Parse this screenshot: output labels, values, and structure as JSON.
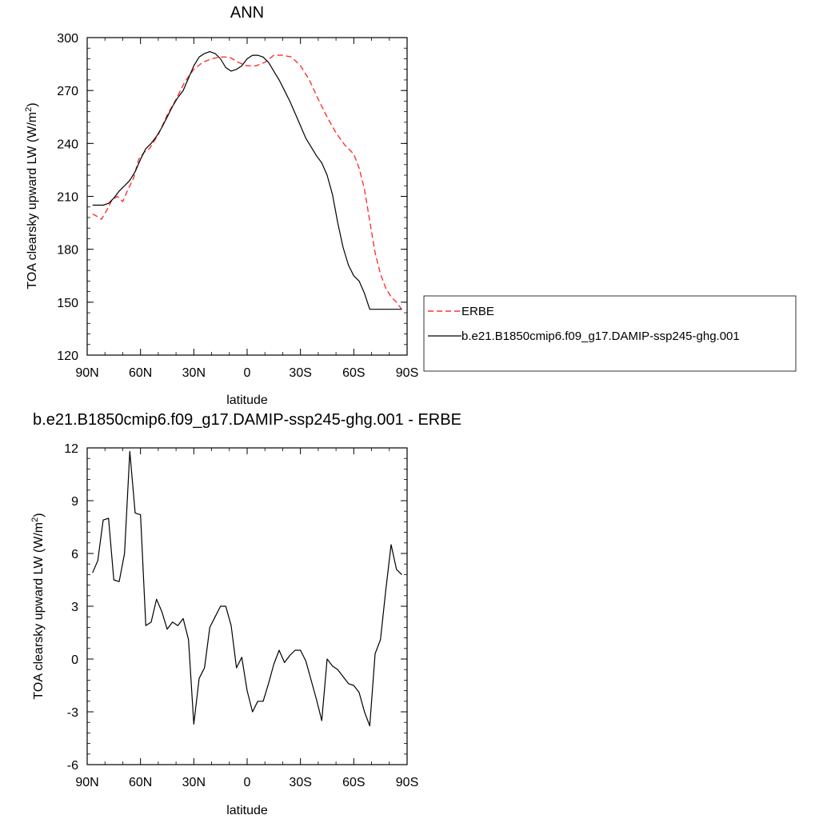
{
  "colors": {
    "erbe": "#ff3030",
    "model": "#000000"
  },
  "chart_data": [
    {
      "type": "line",
      "title": "ANN",
      "xlabel": "latitude",
      "ylabel": "TOA clearsky upward LW (W/m",
      "ylabel_sup": "2",
      "ylabel_tail": ")",
      "xlim": [
        -90,
        90
      ],
      "ylim": [
        120,
        300
      ],
      "x_ticks": [
        -90,
        -60,
        -30,
        0,
        30,
        60,
        90
      ],
      "x_tick_labels": [
        "90N",
        "60N",
        "30N",
        "0",
        "30S",
        "60S",
        "90S"
      ],
      "y_ticks": [
        120,
        150,
        180,
        210,
        240,
        270,
        300
      ],
      "y_tick_labels": [
        "120",
        "150",
        "180",
        "210",
        "240",
        "270",
        "300"
      ],
      "grid": false,
      "legend_position": "right",
      "series": [
        {
          "name": "ERBE",
          "style": "dashed",
          "color": "#ff3030",
          "x": [
            -87,
            -85,
            -82,
            -79,
            -76,
            -73,
            -70,
            -67,
            -64,
            -61,
            -58,
            -55,
            -50,
            -45,
            -40,
            -35,
            -30,
            -25,
            -20,
            -15,
            -10,
            -5,
            0,
            5,
            10,
            15,
            20,
            25,
            30,
            35,
            40,
            45,
            50,
            55,
            60,
            63,
            66,
            69,
            72,
            75,
            78,
            81,
            84,
            87
          ],
          "y": [
            200,
            199,
            197,
            202,
            208,
            210,
            207,
            214,
            220,
            231,
            235,
            237,
            245,
            256,
            265,
            275,
            282,
            286,
            288,
            289,
            289,
            286,
            284,
            284,
            286,
            290,
            290,
            289,
            284,
            276,
            265,
            255,
            246,
            239,
            234,
            226,
            214,
            196,
            178,
            166,
            158,
            153,
            150,
            146
          ]
        },
        {
          "name": "b.e21.B1850cmip6.f09_g17.DAMIP-ssp245-ghg.001",
          "style": "solid",
          "color": "#000000",
          "x": [
            -87,
            -84,
            -81,
            -78,
            -75,
            -72,
            -69,
            -66,
            -63,
            -60,
            -57,
            -54,
            -51,
            -48,
            -45,
            -42,
            -39,
            -36,
            -33,
            -30,
            -27,
            -24,
            -21,
            -18,
            -15,
            -12,
            -9,
            -6,
            -3,
            0,
            3,
            6,
            9,
            12,
            15,
            18,
            21,
            24,
            27,
            30,
            33,
            36,
            39,
            42,
            45,
            48,
            51,
            54,
            57,
            60,
            63,
            66,
            69,
            72,
            75,
            78,
            81,
            84,
            87
          ],
          "y": [
            205,
            205,
            205,
            206,
            209,
            213,
            216,
            219,
            224,
            231,
            237,
            240,
            244,
            249,
            255,
            261,
            266,
            270,
            277,
            284,
            289,
            291,
            292,
            291,
            288,
            283,
            281,
            282,
            284,
            288,
            290,
            290,
            289,
            286,
            281,
            276,
            270,
            264,
            257,
            250,
            243,
            238,
            233,
            229,
            222,
            211,
            195,
            181,
            171,
            165,
            162,
            155,
            146,
            146,
            146,
            146,
            146,
            146,
            146
          ]
        }
      ]
    },
    {
      "type": "line",
      "title": "b.e21.B1850cmip6.f09_g17.DAMIP-ssp245-ghg.001 - ERBE",
      "xlabel": "latitude",
      "ylabel": "TOA clearsky upward LW (W/m",
      "ylabel_sup": "2",
      "ylabel_tail": ")",
      "xlim": [
        -90,
        90
      ],
      "ylim": [
        -6,
        12
      ],
      "x_ticks": [
        -90,
        -60,
        -30,
        0,
        30,
        60,
        90
      ],
      "x_tick_labels": [
        "90N",
        "60N",
        "30N",
        "0",
        "30S",
        "60S",
        "90S"
      ],
      "y_ticks": [
        -6,
        -3,
        0,
        3,
        6,
        9,
        12
      ],
      "y_tick_labels": [
        "-6",
        "-3",
        "0",
        "3",
        "6",
        "9",
        "12"
      ],
      "grid": false,
      "series": [
        {
          "style": "solid",
          "color": "#000000",
          "x": [
            -87,
            -84,
            -81,
            -78,
            -75,
            -72,
            -69,
            -66,
            -63,
            -60,
            -57,
            -54,
            -51,
            -48,
            -45,
            -42,
            -39,
            -36,
            -33,
            -30,
            -27,
            -24,
            -21,
            -18,
            -15,
            -12,
            -9,
            -6,
            -3,
            0,
            3,
            6,
            9,
            12,
            15,
            18,
            21,
            24,
            27,
            30,
            33,
            36,
            39,
            42,
            45,
            48,
            51,
            54,
            57,
            60,
            63,
            66,
            69,
            72,
            75,
            78,
            81,
            84,
            87
          ],
          "y": [
            4.9,
            5.6,
            7.9,
            8.0,
            4.5,
            4.4,
            6.0,
            11.8,
            8.3,
            8.2,
            1.9,
            2.1,
            3.4,
            2.7,
            1.7,
            2.1,
            1.9,
            2.3,
            1.1,
            -3.7,
            -1.1,
            -0.5,
            1.8,
            2.4,
            3.0,
            3.0,
            1.9,
            -0.5,
            0.1,
            -1.8,
            -3.0,
            -2.4,
            -2.4,
            -1.4,
            -0.3,
            0.5,
            -0.2,
            0.2,
            0.5,
            0.5,
            -0.1,
            -1.2,
            -2.3,
            -3.5,
            0.0,
            -0.4,
            -0.6,
            -1.0,
            -1.4,
            -1.5,
            -1.9,
            -3.0,
            -3.8,
            0.3,
            1.1,
            3.9,
            6.5,
            5.1,
            4.8
          ]
        }
      ]
    }
  ],
  "legend": {
    "items": [
      {
        "label": "ERBE",
        "style": "dashed",
        "color": "#ff3030"
      },
      {
        "label": "b.e21.B1850cmip6.f09_g17.DAMIP-ssp245-ghg.001",
        "style": "solid",
        "color": "#000000"
      }
    ]
  }
}
